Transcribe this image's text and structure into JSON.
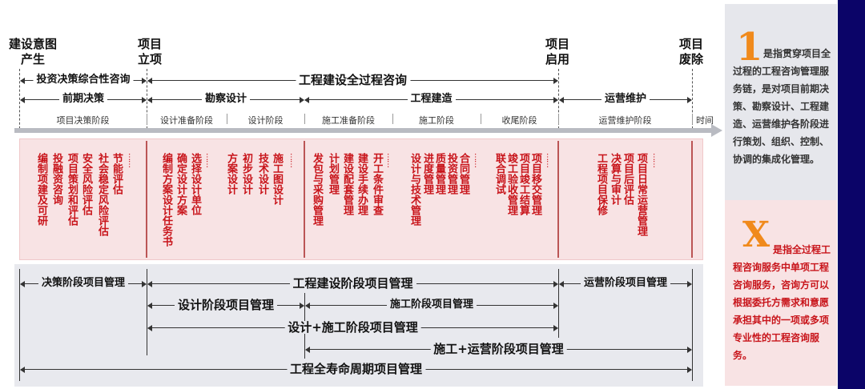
{
  "milestones": [
    "建设意图\n产生",
    "项目\n立项",
    "项目\n启用",
    "项目\n废除"
  ],
  "row1": {
    "invest": "投资决策综合性咨询",
    "whole": "工程建设全过程咨询"
  },
  "row2": {
    "pre": "前期决策",
    "survey": "勘察设计",
    "build": "工程建造",
    "ops": "运营维护"
  },
  "stages": [
    "项目决策阶段",
    "设计准备阶段",
    "设计阶段",
    "施工准备阶段",
    "施工阶段",
    "收尾阶段",
    "运营维护阶段",
    "时间"
  ],
  "tasks": {
    "g1": [
      "编制项建及可研",
      "投融资咨询",
      "项目策划和评估",
      "安全风险评估",
      "社会稳定风险评估",
      "节能评估"
    ],
    "g2a": [
      "编制方案设计任务书",
      "确定设计方案",
      "选择设计单位"
    ],
    "g2b": [
      "方案设计",
      "初步设计",
      "技术设计",
      "施工图设计"
    ],
    "g3a": [
      "发包与采购管理",
      "计划管理",
      "建设配套管理",
      "建设手续办理",
      "开工条件审查"
    ],
    "g3b": [
      "设计与技术管理",
      "进度管理",
      "质量管理",
      "投资管理",
      "合同管理"
    ],
    "g3c": [
      "联合调试",
      "竣工验收管理",
      "项目竣工结算",
      "项目移交管理"
    ],
    "g4": [
      "工程项目保修",
      "决算与审计",
      "项目后评估",
      "项目日常运营管理"
    ],
    "ellipsis": "……"
  },
  "mgmt": {
    "decision": "决策阶段项目管理",
    "construction": "工程建设阶段项目管理",
    "operation": "运营阶段项目管理",
    "design": "设计阶段项目管理",
    "build": "施工阶段项目管理",
    "design_build": "设计+施工阶段项目管理",
    "build_ops": "施工+运营阶段项目管理",
    "lifecycle": "工程全寿命周期项目管理"
  },
  "side": {
    "one_glyph": "1",
    "one_text": "是指贯穿项目全过程的工程咨询管理服务链，是对项目前期决策、勘察设计、工程建造、运营维护各阶段进行策划、组织、控制、协调的集成化管理。",
    "x_glyph": "X",
    "x_text": "是指全过程工程咨询服务中单项工程咨询服务，咨询方可以根据委托方需求和意愿承担其中的一项或多项专业性的工程咨询服务。"
  },
  "colors": {
    "accent_orange": "#f08a1c",
    "task_red": "#c8141a",
    "navy": "#0b0468",
    "pink_bg": "#f8e3e4",
    "gray_bg": "#e8e9ee"
  }
}
